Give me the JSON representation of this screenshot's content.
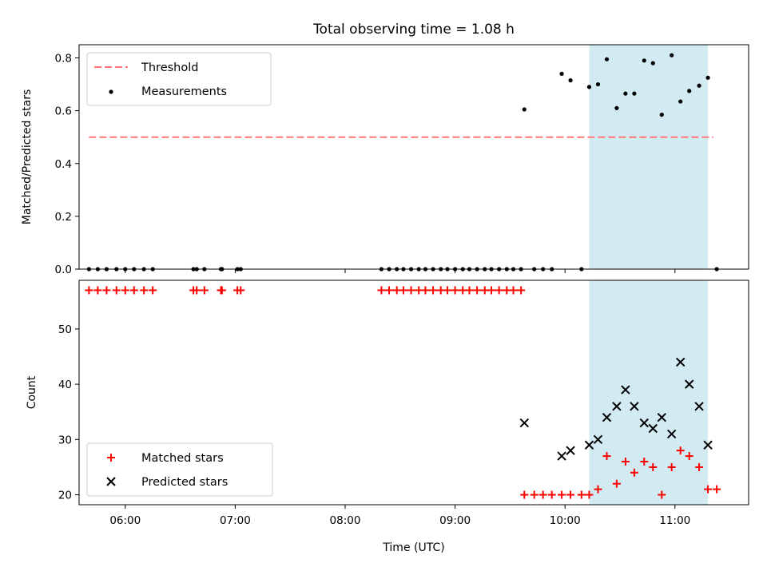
{
  "chart_data": [
    {
      "type": "scatter",
      "title": "Total observing time = 1.08 h",
      "ylabel": "Matched/Predicted stars",
      "xlabel": "",
      "x_unit": "hours UTC",
      "xlim": [
        5.58,
        11.67
      ],
      "ylim": [
        0,
        0.85
      ],
      "yticks": [
        0.0,
        0.2,
        0.4,
        0.6,
        0.8
      ],
      "ytick_labels": [
        "0.0",
        "0.2",
        "0.4",
        "0.6",
        "0.8"
      ],
      "grid": false,
      "legend_position": "top-left",
      "highlight_span": {
        "x": [
          10.22,
          11.3
        ],
        "color": "#add8e6"
      },
      "threshold": {
        "name": "Threshold",
        "y": 0.5,
        "x": [
          5.67,
          11.35
        ],
        "color": "#ff7777",
        "style": "dashed"
      },
      "series": [
        {
          "name": "Measurements",
          "color": "#000000",
          "marker": "dot",
          "x": [
            5.67,
            5.75,
            5.83,
            5.92,
            6.0,
            6.08,
            6.17,
            6.25,
            6.62,
            6.65,
            6.72,
            6.87,
            6.88,
            7.02,
            7.05,
            8.33,
            8.4,
            8.47,
            8.53,
            8.6,
            8.67,
            8.73,
            8.8,
            8.87,
            8.93,
            9.0,
            9.07,
            9.13,
            9.2,
            9.27,
            9.33,
            9.4,
            9.47,
            9.53,
            9.6,
            9.63,
            9.72,
            9.8,
            9.88,
            9.97,
            10.05,
            10.15,
            10.22,
            10.3,
            10.38,
            10.47,
            10.55,
            10.63,
            10.72,
            10.8,
            10.88,
            10.97,
            11.05,
            11.13,
            11.22,
            11.3,
            11.38
          ],
          "y": [
            0,
            0,
            0,
            0,
            0,
            0,
            0,
            0,
            0,
            0,
            0,
            0,
            0,
            0,
            0,
            0,
            0,
            0,
            0,
            0,
            0,
            0,
            0,
            0,
            0,
            0,
            0,
            0,
            0,
            0,
            0,
            0,
            0,
            0,
            0,
            0.605,
            0,
            0,
            0,
            0.74,
            0.715,
            0,
            0.69,
            0.7,
            0.795,
            0.61,
            0.665,
            0.665,
            0.79,
            0.78,
            0.585,
            0.81,
            0.635,
            0.675,
            0.695,
            0.725,
            0
          ]
        }
      ]
    },
    {
      "type": "scatter",
      "title": "",
      "ylabel": "Count",
      "xlabel": "Time (UTC)",
      "x_unit": "hours UTC",
      "xlim": [
        5.58,
        11.67
      ],
      "ylim": [
        18.2,
        58.8
      ],
      "xticks": [
        6,
        7,
        8,
        9,
        10,
        11
      ],
      "xtick_labels": [
        "06:00",
        "07:00",
        "08:00",
        "09:00",
        "10:00",
        "11:00"
      ],
      "yticks": [
        20,
        30,
        40,
        50
      ],
      "ytick_labels": [
        "20",
        "30",
        "40",
        "50"
      ],
      "grid": false,
      "legend_position": "bottom-left",
      "highlight_span": {
        "x": [
          10.22,
          11.3
        ],
        "color": "#add8e6"
      },
      "series": [
        {
          "name": "Matched stars",
          "color": "#ff0000",
          "marker": "plus",
          "x": [
            5.67,
            5.75,
            5.83,
            5.92,
            6.0,
            6.08,
            6.17,
            6.25,
            6.62,
            6.65,
            6.72,
            6.87,
            6.88,
            7.02,
            7.05,
            8.33,
            8.4,
            8.47,
            8.53,
            8.6,
            8.67,
            8.73,
            8.8,
            8.87,
            8.93,
            9.0,
            9.07,
            9.13,
            9.2,
            9.27,
            9.33,
            9.4,
            9.47,
            9.53,
            9.6,
            9.63,
            9.72,
            9.8,
            9.88,
            9.97,
            10.05,
            10.15,
            10.22,
            10.3,
            10.38,
            10.47,
            10.55,
            10.63,
            10.72,
            10.8,
            10.88,
            10.97,
            11.05,
            11.13,
            11.22,
            11.3,
            11.38
          ],
          "y": [
            57,
            57,
            57,
            57,
            57,
            57,
            57,
            57,
            57,
            57,
            57,
            57,
            57,
            57,
            57,
            57,
            57,
            57,
            57,
            57,
            57,
            57,
            57,
            57,
            57,
            57,
            57,
            57,
            57,
            57,
            57,
            57,
            57,
            57,
            57,
            20,
            20,
            20,
            20,
            20,
            20,
            20,
            20,
            21,
            27,
            22,
            26,
            24,
            26,
            25,
            20,
            25,
            28,
            27,
            25,
            21,
            21
          ]
        },
        {
          "name": "Predicted stars",
          "color": "#000000",
          "marker": "x",
          "x": [
            9.63,
            9.97,
            10.05,
            10.22,
            10.3,
            10.38,
            10.47,
            10.55,
            10.63,
            10.72,
            10.8,
            10.88,
            10.97,
            11.05,
            11.13,
            11.22,
            11.3
          ],
          "y": [
            33,
            27,
            28,
            29,
            30,
            34,
            36,
            39,
            36,
            33,
            32,
            34,
            31,
            44,
            40,
            36,
            29
          ]
        }
      ]
    }
  ]
}
